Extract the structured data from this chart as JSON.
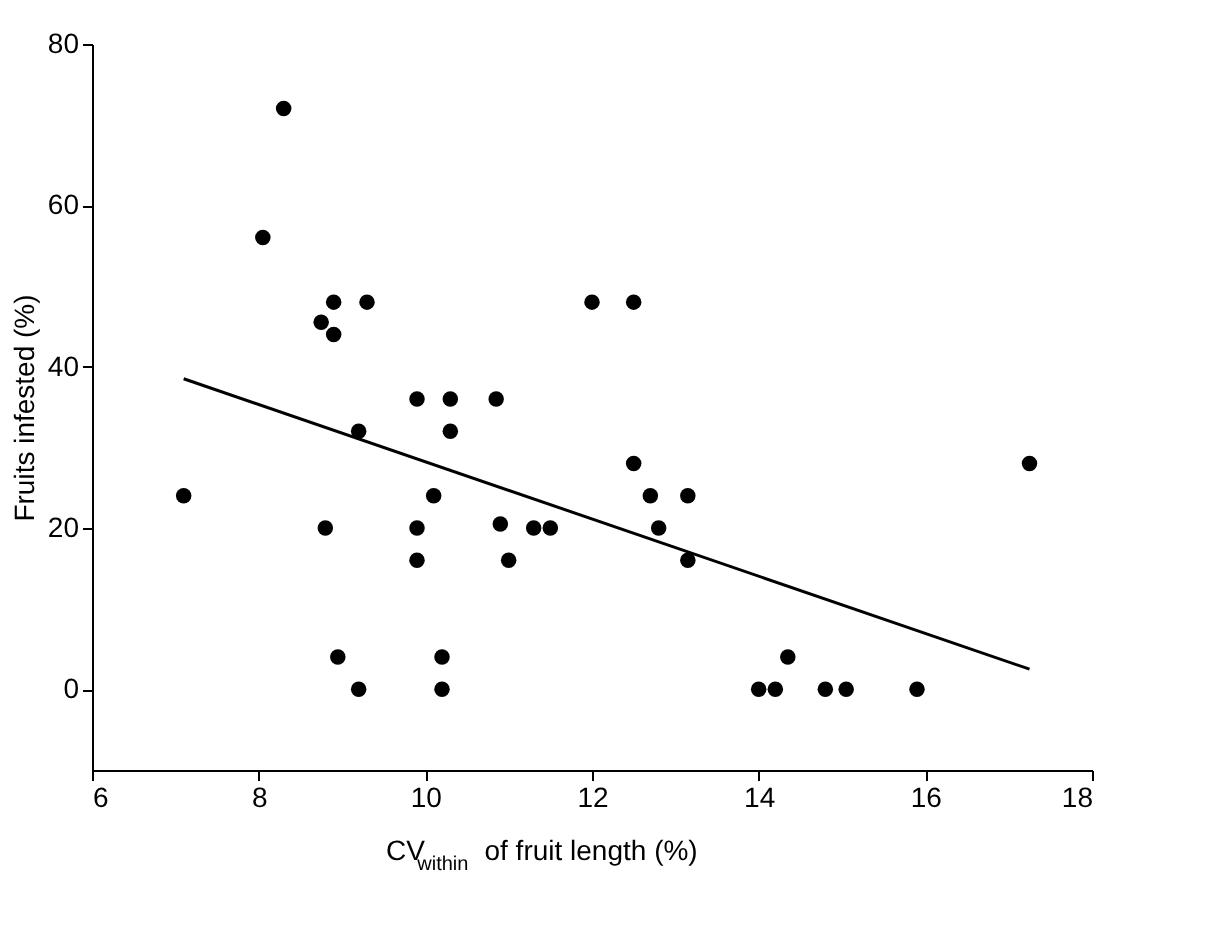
{
  "chart_data": {
    "type": "scatter",
    "xlabel": "CV$_{within}$ of fruit length (%)",
    "ylabel": "Fruits infested (%)",
    "xlim": [
      6,
      18
    ],
    "xticks": [
      6,
      8,
      10,
      12,
      14,
      16,
      18
    ],
    "ylim": [
      -10,
      80
    ],
    "yticks": [
      0,
      20,
      40,
      60,
      80
    ],
    "grid": false,
    "marker": "circle",
    "series": [
      {
        "color": "#000000",
        "x": [
          7.1,
          8.05,
          8.3,
          8.75,
          8.9,
          8.9,
          8.8,
          8.95,
          9.2,
          9.3,
          9.2,
          9.9,
          9.9,
          9.9,
          10.1,
          10.3,
          10.3,
          10.2,
          10.2,
          10.85,
          10.9,
          11.0,
          11.3,
          11.5,
          12.0,
          12.5,
          12.5,
          12.7,
          12.8,
          13.15,
          13.15,
          14.0,
          14.2,
          14.35,
          14.8,
          15.05,
          15.9,
          17.25
        ],
        "values": [
          24,
          56,
          72,
          45.5,
          48,
          44,
          20,
          4,
          32,
          48,
          0,
          36,
          20,
          16,
          24,
          36,
          32,
          4,
          0,
          36,
          20.5,
          16,
          20,
          20,
          48,
          48,
          28,
          24,
          20,
          24,
          16,
          0,
          0,
          4,
          0,
          0,
          0,
          28
        ]
      },
      {
        "type": "line",
        "color": "#000000",
        "marker": "none",
        "line_style": "solid",
        "x": [
          7.1,
          17.25
        ],
        "values": [
          38.5,
          2.5
        ]
      }
    ]
  }
}
